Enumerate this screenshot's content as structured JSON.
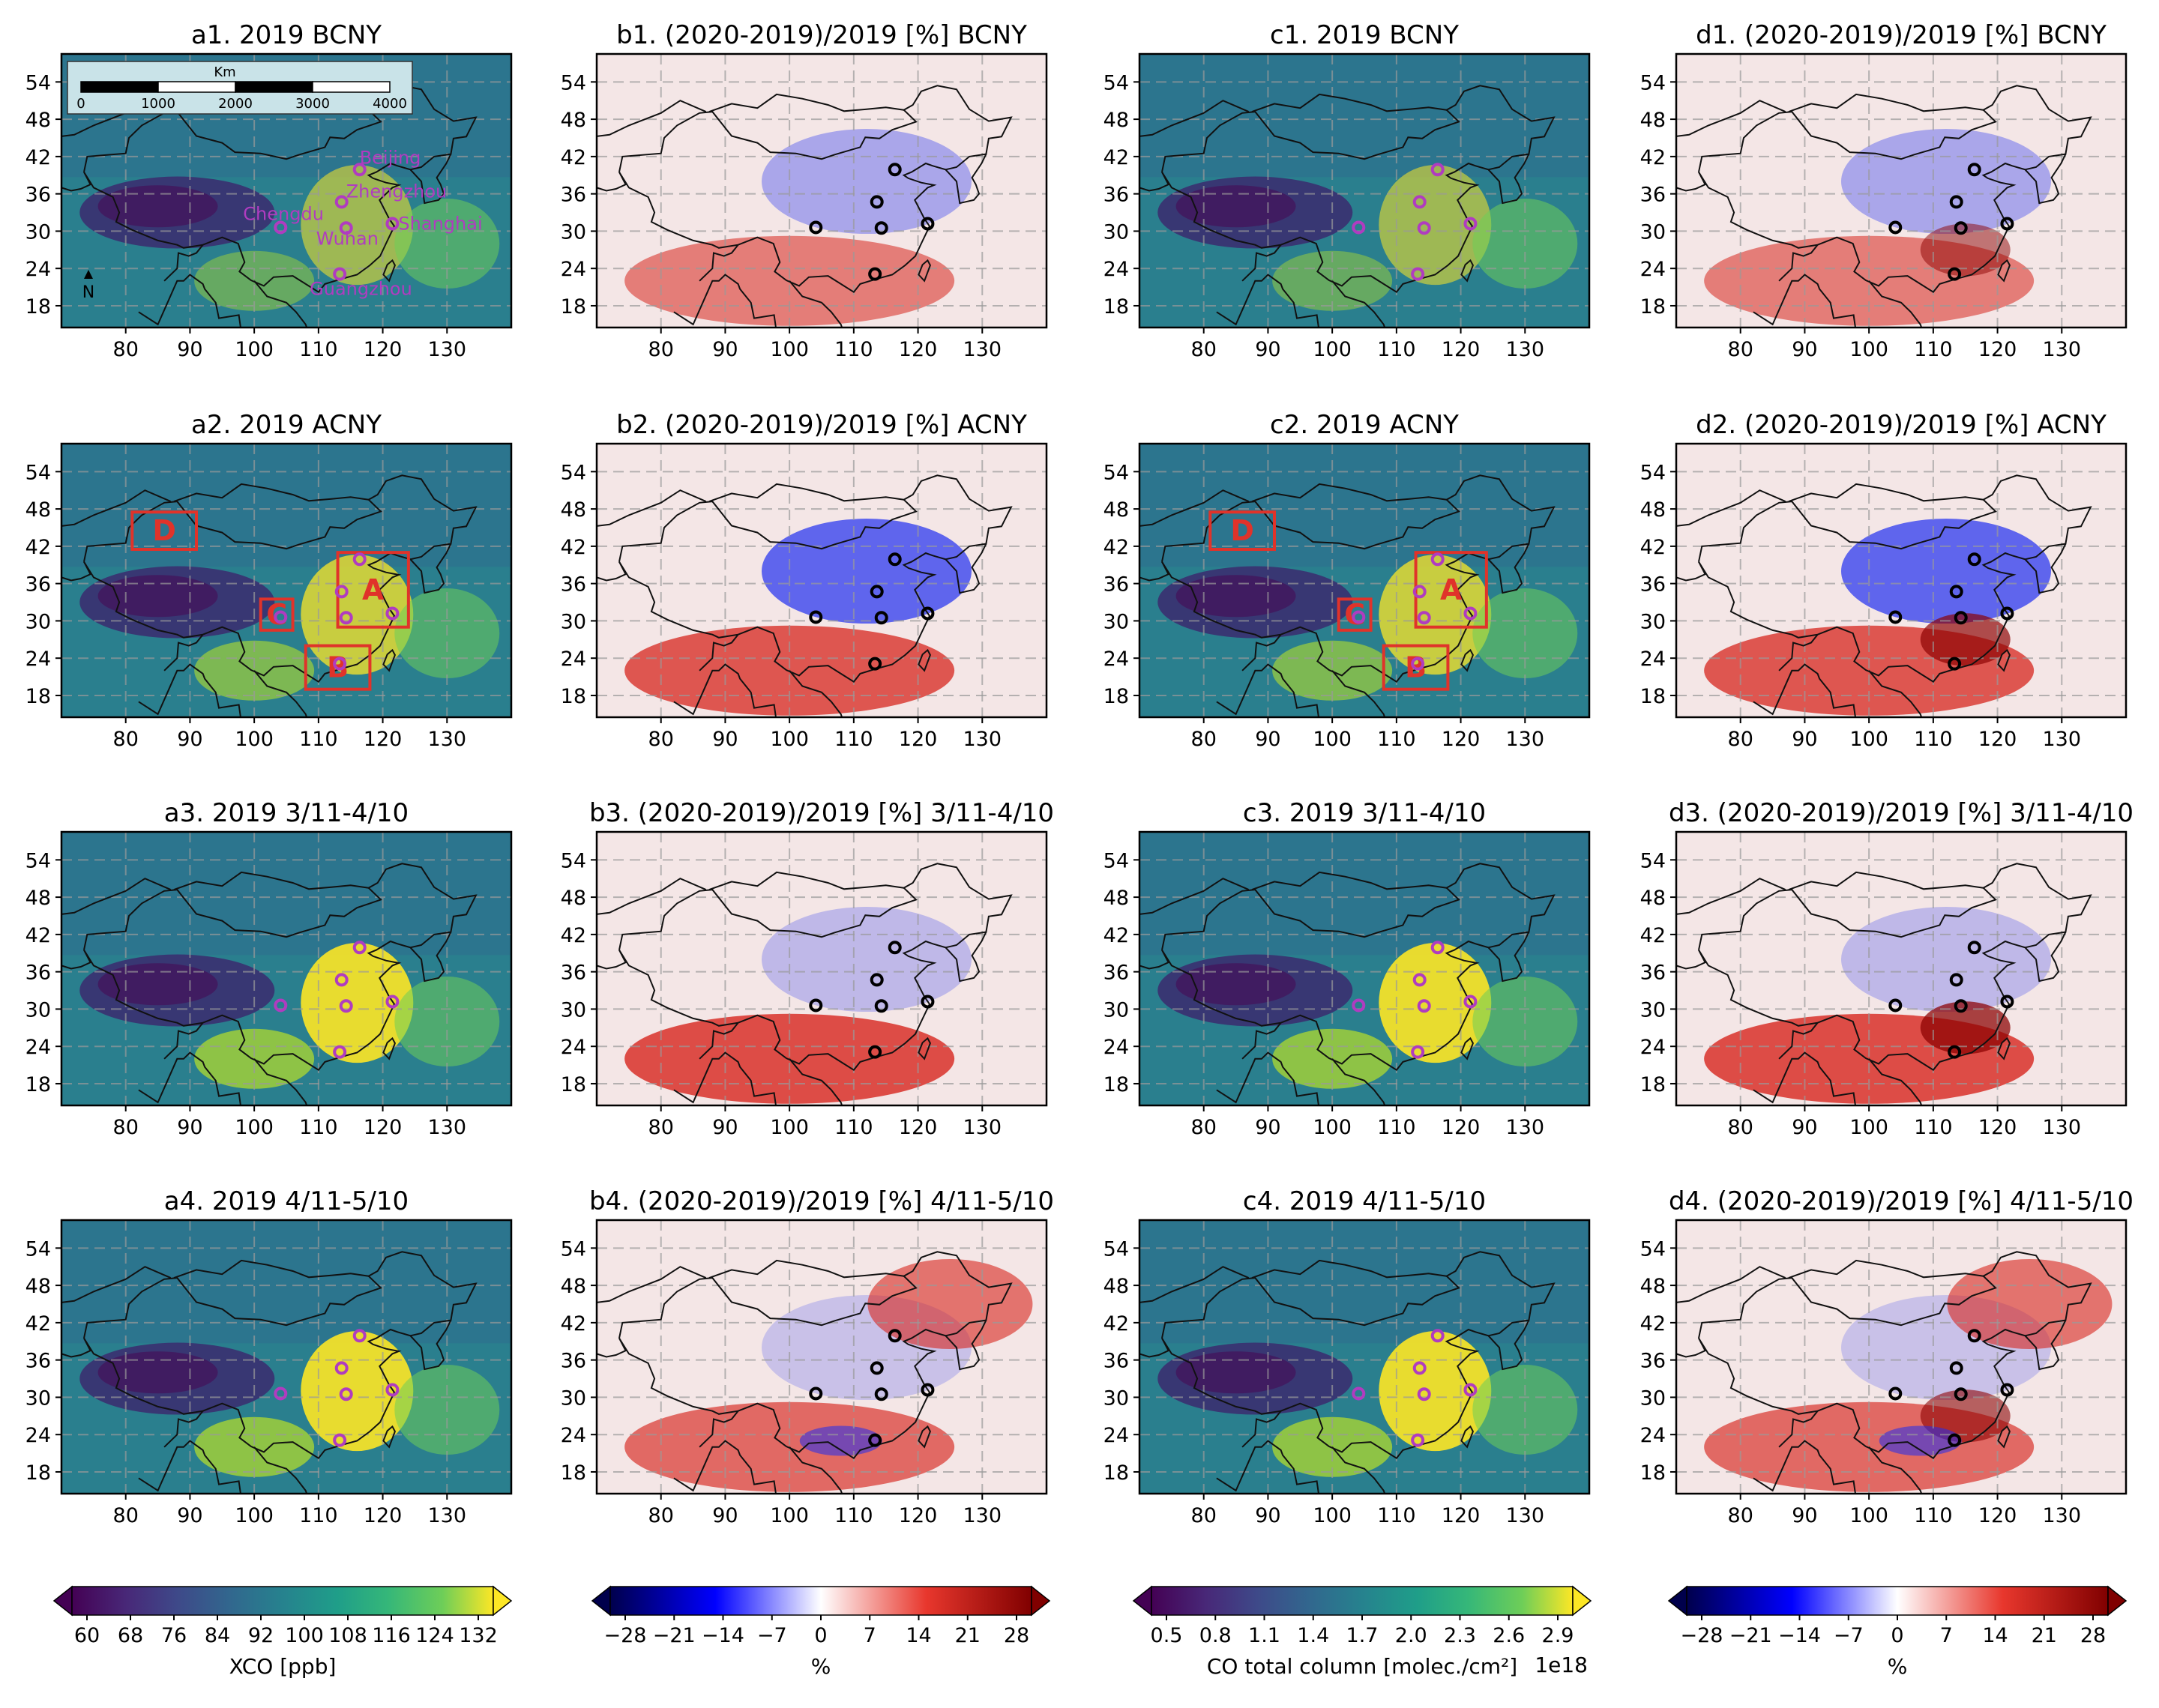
{
  "figure": {
    "lon_ticks": [
      "80",
      "90",
      "100",
      "110",
      "120",
      "130"
    ],
    "lat_ticks": [
      "54",
      "48",
      "42",
      "36",
      "30",
      "24",
      "18"
    ],
    "north_label": "N",
    "scalebar": {
      "unit": "Km",
      "ticks": [
        "0",
        "1000",
        "2000",
        "3000",
        "4000"
      ]
    },
    "city_labels": [
      "Beijing",
      "Zhengzhou",
      "Chengdu",
      "Wuhan",
      "Shanghai",
      "Guangzhou"
    ],
    "region_box_labels": [
      "A",
      "B",
      "C",
      "D"
    ],
    "panels": [
      {
        "id": "a1",
        "title": "a1. 2019 BCNY"
      },
      {
        "id": "b1",
        "title": "b1. (2020-2019)/2019 [%] BCNY"
      },
      {
        "id": "c1",
        "title": "c1. 2019 BCNY"
      },
      {
        "id": "d1",
        "title": "d1. (2020-2019)/2019 [%] BCNY"
      },
      {
        "id": "a2",
        "title": "a2. 2019 ACNY"
      },
      {
        "id": "b2",
        "title": "b2. (2020-2019)/2019 [%] ACNY"
      },
      {
        "id": "c2",
        "title": "c2. 2019 ACNY"
      },
      {
        "id": "d2",
        "title": "d2. (2020-2019)/2019 [%] ACNY"
      },
      {
        "id": "a3",
        "title": "a3. 2019 3/11-4/10"
      },
      {
        "id": "b3",
        "title": "b3. (2020-2019)/2019 [%] 3/11-4/10"
      },
      {
        "id": "c3",
        "title": "c3. 2019 3/11-4/10"
      },
      {
        "id": "d3",
        "title": "d3. (2020-2019)/2019 [%] 3/11-4/10"
      },
      {
        "id": "a4",
        "title": "a4. 2019 4/11-5/10"
      },
      {
        "id": "b4",
        "title": "b4. (2020-2019)/2019 [%] 4/11-5/10"
      },
      {
        "id": "c4",
        "title": "c4. 2019 4/11-5/10"
      },
      {
        "id": "d4",
        "title": "d4. (2020-2019)/2019 [%] 4/11-5/10"
      }
    ],
    "colorbars": [
      {
        "id": "xco",
        "cmap": "viridis",
        "label": "XCO [ppb]",
        "offset_text": "",
        "ticks": [
          "60",
          "68",
          "76",
          "84",
          "92",
          "100",
          "108",
          "116",
          "124",
          "132"
        ]
      },
      {
        "id": "pct_b",
        "cmap": "seismic",
        "label": "%",
        "offset_text": "",
        "ticks": [
          "−28",
          "−21",
          "−14",
          "−7",
          "0",
          "7",
          "14",
          "21",
          "28"
        ]
      },
      {
        "id": "co",
        "cmap": "viridis",
        "label": "CO total column [molec./cm²]",
        "offset_text": "1e18",
        "ticks": [
          "0.5",
          "0.8",
          "1.1",
          "1.4",
          "1.7",
          "2.0",
          "2.3",
          "2.6",
          "2.9"
        ]
      },
      {
        "id": "pct_d",
        "cmap": "seismic",
        "label": "%",
        "offset_text": "",
        "ticks": [
          "−28",
          "−21",
          "−14",
          "−7",
          "0",
          "7",
          "14",
          "21",
          "28"
        ]
      }
    ]
  },
  "colors": {
    "viridis_low": "#440154",
    "viridis_mid": "#21918c",
    "viridis_high": "#fde725",
    "diverge_low": "#00004c",
    "diverge_mid": "#ffffff",
    "diverge_high": "#800000",
    "city_marker_map": "#b03cc0",
    "city_marker_pct": "#000000",
    "region_box": "#e0332a"
  }
}
